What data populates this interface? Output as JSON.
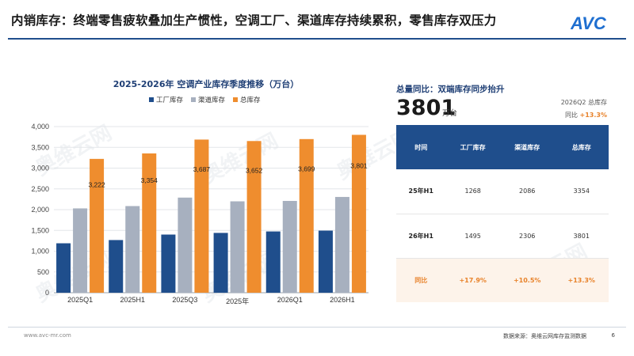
{
  "slide": {
    "title": "内销库存：终端零售疲软叠加生产惯性，空调工厂、渠道库存持续累积，零售库存双压力",
    "logo_text": "AVC"
  },
  "chart_data": {
    "type": "bar",
    "title": "2025-2026年 空调产业库存季度推移（万台）",
    "categories": [
      "2025Q1",
      "2025H1",
      "2025Q3",
      "2025年",
      "2026Q1",
      "2026H1"
    ],
    "series": [
      {
        "name": "工厂库存",
        "color": "#1f4e8c",
        "values": [
          1190,
          1268,
          1400,
          1440,
          1475,
          1495
        ]
      },
      {
        "name": "渠道库存",
        "color": "#a7b0bf",
        "values": [
          2030,
          2086,
          2290,
          2200,
          2210,
          2306
        ]
      },
      {
        "name": "总库存",
        "color": "#ef8d2e",
        "values": [
          3222,
          3354,
          3687,
          3652,
          3699,
          3801
        ]
      }
    ],
    "data_labels": [
      "3,222",
      "3,354",
      "3,687",
      "3,652",
      "3,699",
      "3,801"
    ],
    "yticks": [
      "0",
      "500",
      "1,000",
      "1,500",
      "2,000",
      "2,500",
      "3,000",
      "3,500",
      "4,000"
    ],
    "ylim": [
      0,
      4000
    ],
    "grid": true,
    "legend_position": "top"
  },
  "summary": {
    "title": "总量同比：双端库存同步抬升",
    "total_value": "3801",
    "unit": "万台",
    "period_label": "2026Q2 总库存",
    "yoy_caption": "同比",
    "yoy_value": "+13.3%"
  },
  "table": {
    "headers": [
      "时间",
      "工厂库存",
      "渠道库存",
      "总库存"
    ],
    "rows": [
      [
        "25年H1",
        "1268",
        "2086",
        "3354"
      ],
      [
        "26年H1",
        "1495",
        "2306",
        "3801"
      ]
    ],
    "yoy_row": [
      "同比",
      "+17.9%",
      "+10.5%",
      "+13.3%"
    ]
  },
  "footer": {
    "url": "www.avc-mr.com",
    "source": "数据来源：奥维云网库存监测数据",
    "page": "6"
  },
  "watermark": {
    "text": "奥维云网"
  }
}
